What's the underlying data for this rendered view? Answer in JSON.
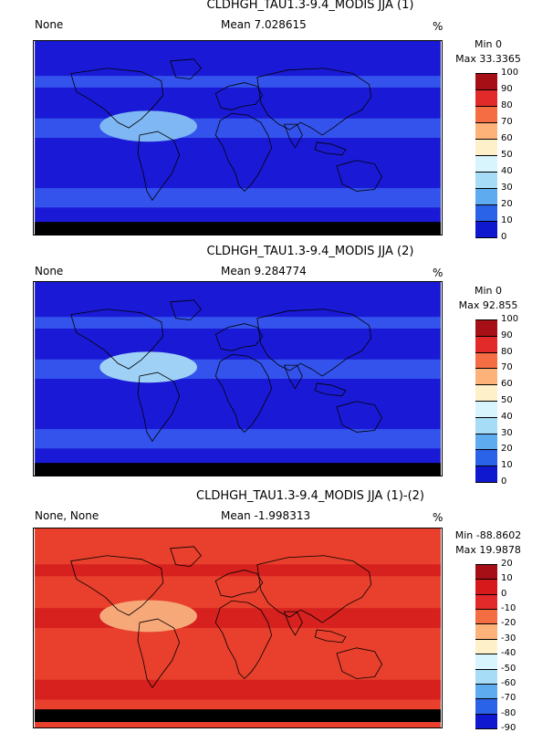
{
  "panels": [
    {
      "title": "CLDHGH_TAU1.3-9.4_MODIS JJA (1)",
      "left_label": "None",
      "mean_label": "Mean 7.028615",
      "unit": "%",
      "min_label": "Min 0",
      "max_label": "Max 33.3365",
      "colorbar_labels": [
        "100",
        "90",
        "80",
        "70",
        "60",
        "50",
        "40",
        "30",
        "20",
        "10",
        "0"
      ],
      "colorbar_colors": [
        "#a50f15",
        "#e32a2a",
        "#f46d43",
        "#fdb27a",
        "#fef0c8",
        "#d8f4fc",
        "#a6dcf5",
        "#5eabef",
        "#2b63e8",
        "#1018cf"
      ],
      "base_color": "#1a1ad6",
      "accent_color": "#3a5ef0",
      "highlight_color": "#7fb7f4"
    },
    {
      "title": "CLDHGH_TAU1.3-9.4_MODIS JJA (2)",
      "left_label": "None",
      "mean_label": "Mean 9.284774",
      "unit": "%",
      "min_label": "Min 0",
      "max_label": "Max 92.855",
      "colorbar_labels": [
        "100",
        "90",
        "80",
        "70",
        "60",
        "50",
        "40",
        "30",
        "20",
        "10",
        "0"
      ],
      "colorbar_colors": [
        "#a50f15",
        "#e32a2a",
        "#f46d43",
        "#fdb27a",
        "#fef0c8",
        "#d8f4fc",
        "#a6dcf5",
        "#5eabef",
        "#2b63e8",
        "#1018cf"
      ],
      "base_color": "#1a1ad6",
      "accent_color": "#3a5ef0",
      "highlight_color": "#9fd0f6"
    },
    {
      "title": "CLDHGH_TAU1.3-9.4_MODIS JJA (1)-(2)",
      "left_label": "None, None",
      "mean_label": "Mean -1.998313",
      "unit": "%",
      "min_label": "Min -88.8602",
      "max_label": "Max 19.9878",
      "colorbar_labels": [
        "20",
        "10",
        "0",
        "-10",
        "-20",
        "-30",
        "-40",
        "-50",
        "-60",
        "-70",
        "-80",
        "-90"
      ],
      "colorbar_colors": [
        "#a50f15",
        "#d7191c",
        "#e32a2a",
        "#f46d43",
        "#fdb27a",
        "#fef0c8",
        "#d8f4fc",
        "#a6dcf5",
        "#5eabef",
        "#2b63e8",
        "#1018cf"
      ],
      "base_color": "#e8402c",
      "accent_color": "#d21c1c",
      "highlight_color": "#f7a878"
    }
  ]
}
